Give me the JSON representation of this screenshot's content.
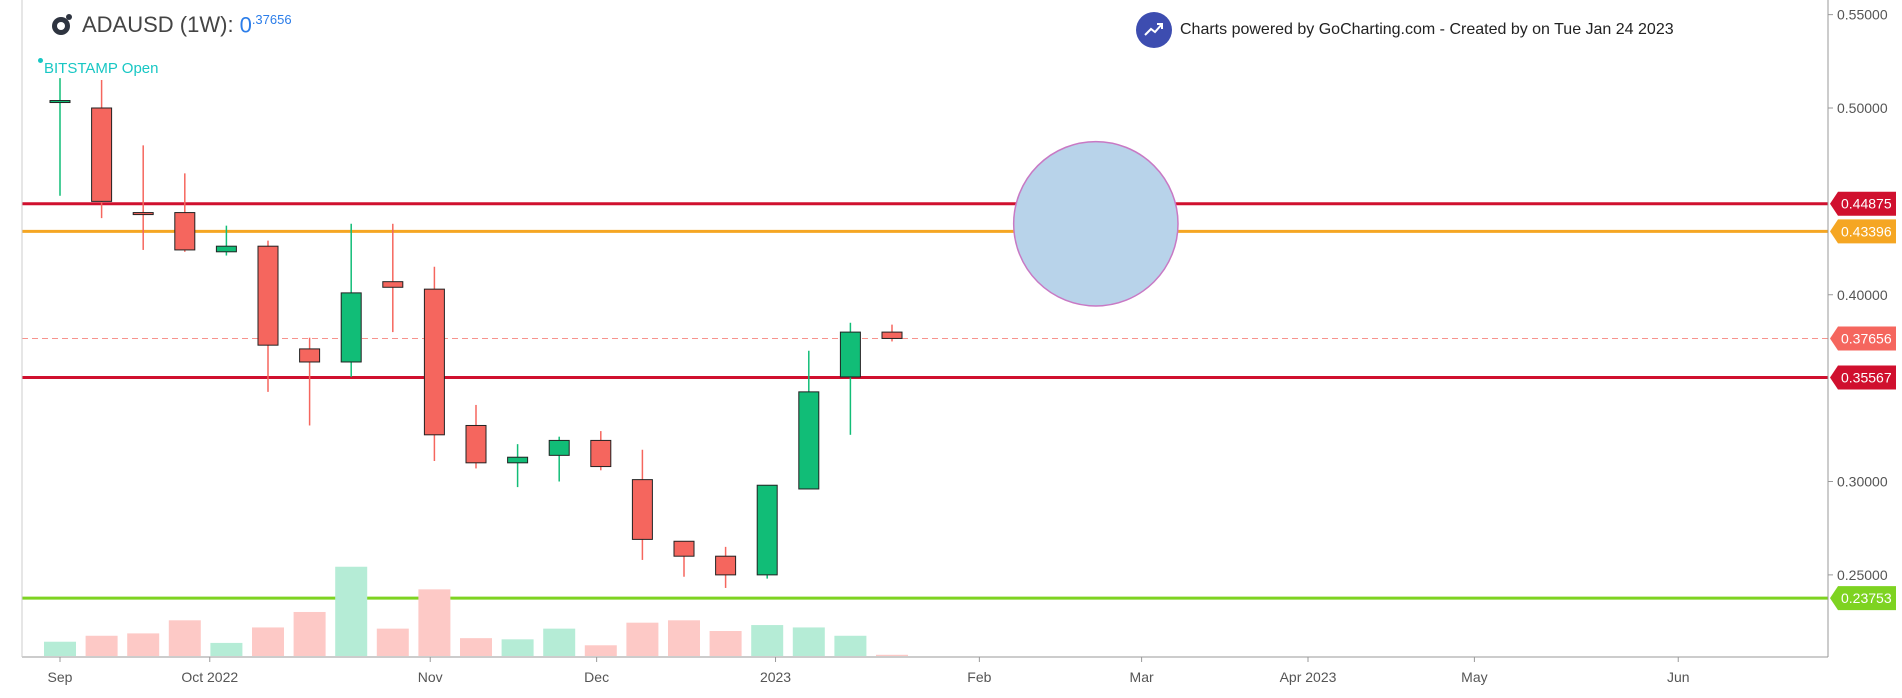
{
  "header": {
    "symbol": "ADAUSD (1W):",
    "price_lead": "0",
    "price_sup": ".37656",
    "source": "BITSTAMP Open",
    "powered": "Charts powered by GoCharting.com - Created by  on Tue Jan 24 2023",
    "logo_icon": "gear-crypto-icon",
    "powered_icon": "trend-up-icon"
  },
  "chart_data": {
    "type": "candlestick",
    "price_axis": {
      "ylim": [
        0.21,
        0.555
      ],
      "ticks": [
        "0.55000",
        "0.50000",
        "0.40000",
        "0.30000",
        "0.25000"
      ]
    },
    "time_axis": {
      "labels": [
        "Sep",
        "Oct 2022",
        "Nov",
        "Dec",
        "2023",
        "Feb",
        "Mar",
        "Apr 2023",
        "May",
        "Jun"
      ],
      "label_weeks": [
        0,
        3.6,
        8.9,
        12.9,
        17.2,
        22.1,
        26.0,
        30.0,
        34.0,
        38.9
      ]
    },
    "candles": [
      {
        "o": 0.503,
        "h": 0.516,
        "l": 0.453,
        "c": 0.504
      },
      {
        "o": 0.5,
        "h": 0.515,
        "l": 0.441,
        "c": 0.45
      },
      {
        "o": 0.444,
        "h": 0.48,
        "l": 0.424,
        "c": 0.443
      },
      {
        "o": 0.444,
        "h": 0.465,
        "l": 0.423,
        "c": 0.424
      },
      {
        "o": 0.423,
        "h": 0.437,
        "l": 0.421,
        "c": 0.426
      },
      {
        "o": 0.426,
        "h": 0.429,
        "l": 0.348,
        "c": 0.373
      },
      {
        "o": 0.371,
        "h": 0.377,
        "l": 0.33,
        "c": 0.364
      },
      {
        "o": 0.364,
        "h": 0.438,
        "l": 0.356,
        "c": 0.401
      },
      {
        "o": 0.407,
        "h": 0.438,
        "l": 0.38,
        "c": 0.404
      },
      {
        "o": 0.403,
        "h": 0.415,
        "l": 0.311,
        "c": 0.325
      },
      {
        "o": 0.33,
        "h": 0.341,
        "l": 0.307,
        "c": 0.31
      },
      {
        "o": 0.31,
        "h": 0.32,
        "l": 0.297,
        "c": 0.313
      },
      {
        "o": 0.314,
        "h": 0.324,
        "l": 0.3,
        "c": 0.322
      },
      {
        "o": 0.322,
        "h": 0.327,
        "l": 0.306,
        "c": 0.308
      },
      {
        "o": 0.301,
        "h": 0.317,
        "l": 0.258,
        "c": 0.269
      },
      {
        "o": 0.268,
        "h": 0.268,
        "l": 0.249,
        "c": 0.26
      },
      {
        "o": 0.26,
        "h": 0.265,
        "l": 0.243,
        "c": 0.25
      },
      {
        "o": 0.25,
        "h": 0.298,
        "l": 0.248,
        "c": 0.298
      },
      {
        "o": 0.296,
        "h": 0.37,
        "l": 0.296,
        "c": 0.348
      },
      {
        "o": 0.356,
        "h": 0.385,
        "l": 0.325,
        "c": 0.38
      },
      {
        "o": 0.38,
        "h": 0.384,
        "l": 0.375,
        "c": 0.3766
      }
    ],
    "volumes": [
      12,
      17,
      19,
      30,
      11,
      24,
      37,
      75,
      23,
      56,
      15,
      14,
      23,
      9,
      28,
      30,
      21,
      26,
      24,
      17,
      1
    ],
    "up_color": "#11bd77",
    "down_color": "#f5665e",
    "levels": [
      {
        "value": 0.44875,
        "label": "0.44875",
        "color": "#d0102e",
        "style": "solid"
      },
      {
        "value": 0.43396,
        "label": "0.43396",
        "color": "#f5a623",
        "style": "solid"
      },
      {
        "value": 0.37656,
        "label": "0.37656",
        "color": "#f5665e",
        "style": "dashed"
      },
      {
        "value": 0.35567,
        "label": "0.35567",
        "color": "#d0102e",
        "style": "solid"
      },
      {
        "value": 0.23753,
        "label": "0.23753",
        "color": "#7ed321",
        "style": "solid"
      }
    ],
    "annotation": {
      "type": "circle",
      "center_week": 24.9,
      "center_price": 0.438,
      "radius_price": 0.044,
      "fill": "#b8d3ea",
      "stroke": "#c879c4"
    }
  }
}
